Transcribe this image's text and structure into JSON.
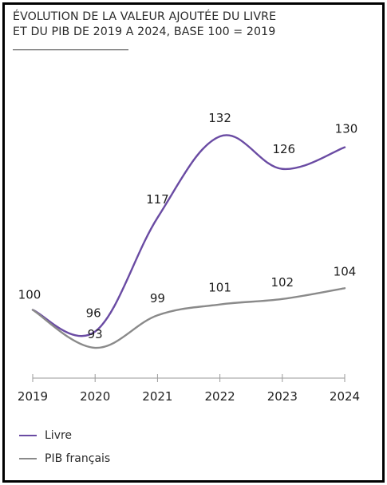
{
  "title_line1": "ÉVOLUTION DE LA VALEUR AJOUTÉE DU LIVRE",
  "title_line2": "ET DU PIB DE 2019 A 2024, BASE 100 = 2019",
  "chart_data": {
    "type": "line",
    "x": [
      "2019",
      "2020",
      "2021",
      "2022",
      "2023",
      "2024"
    ],
    "series": [
      {
        "name": "Livre",
        "color": "#6a4ba3",
        "values": [
          100,
          96,
          117,
          132,
          126,
          130
        ]
      },
      {
        "name": "PIB français",
        "color": "#8a8a8a",
        "values": [
          100,
          93,
          99,
          101,
          102,
          104
        ]
      }
    ],
    "ylim": [
      88,
      137
    ],
    "grid": false,
    "legend": "bottom-left"
  }
}
